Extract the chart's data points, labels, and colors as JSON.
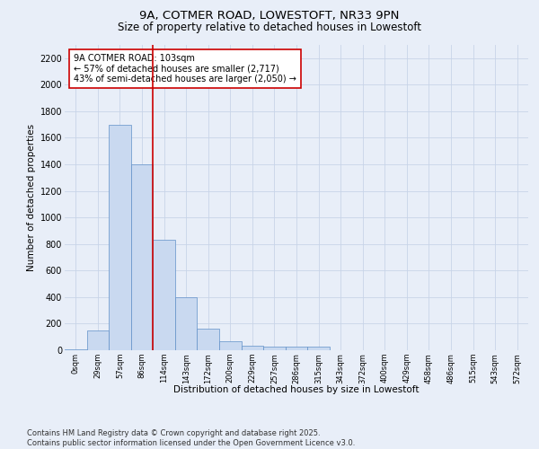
{
  "title_line1": "9A, COTMER ROAD, LOWESTOFT, NR33 9PN",
  "title_line2": "Size of property relative to detached houses in Lowestoft",
  "xlabel": "Distribution of detached houses by size in Lowestoft",
  "ylabel": "Number of detached properties",
  "bar_color": "#c9d9f0",
  "bar_edgecolor": "#6090c8",
  "bar_linewidth": 0.5,
  "categories": [
    "0sqm",
    "29sqm",
    "57sqm",
    "86sqm",
    "114sqm",
    "143sqm",
    "172sqm",
    "200sqm",
    "229sqm",
    "257sqm",
    "286sqm",
    "315sqm",
    "343sqm",
    "372sqm",
    "400sqm",
    "429sqm",
    "458sqm",
    "486sqm",
    "515sqm",
    "543sqm",
    "572sqm"
  ],
  "values": [
    10,
    150,
    1700,
    1400,
    835,
    400,
    163,
    65,
    37,
    28,
    25,
    25,
    0,
    0,
    0,
    0,
    0,
    0,
    0,
    0,
    0
  ],
  "vline_x": 3.5,
  "vline_color": "#cc0000",
  "vline_linewidth": 1.2,
  "annotation_text": "9A COTMER ROAD: 103sqm\n← 57% of detached houses are smaller (2,717)\n43% of semi-detached houses are larger (2,050) →",
  "annotation_box_color": "#ffffff",
  "annotation_box_edgecolor": "#cc0000",
  "annotation_fontsize": 7.0,
  "ylim": [
    0,
    2300
  ],
  "yticks": [
    0,
    200,
    400,
    600,
    800,
    1000,
    1200,
    1400,
    1600,
    1800,
    2000,
    2200
  ],
  "grid_color": "#c8d4e8",
  "background_color": "#e8eef8",
  "footer_text": "Contains HM Land Registry data © Crown copyright and database right 2025.\nContains public sector information licensed under the Open Government Licence v3.0.",
  "footer_fontsize": 6.0,
  "title_fontsize1": 9.5,
  "title_fontsize2": 8.5
}
